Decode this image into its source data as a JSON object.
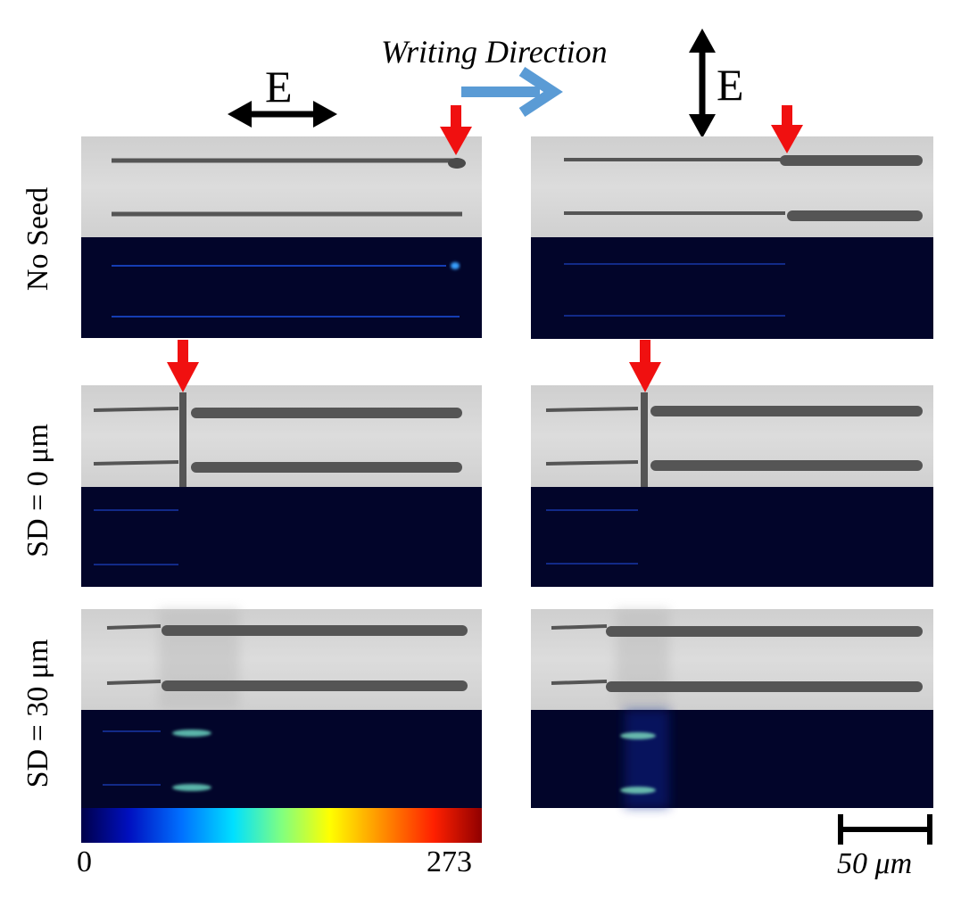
{
  "header": {
    "writing_direction": "Writing Direction",
    "left_field_label": "E",
    "right_field_label": "E"
  },
  "row_labels": [
    "No Seed",
    "SD = 0 μm",
    "SD = 30 μm"
  ],
  "colorbar": {
    "min_label": "0",
    "max_label": "273"
  },
  "scalebar": {
    "label": "50 μm"
  },
  "colors": {
    "arrow_red": "#f01010",
    "arrow_blue": "#5a9bd5",
    "fluor_bg": "#02052a",
    "fluor_line": "#2b8cff",
    "brightfield_bg": "#d6d6d6"
  }
}
